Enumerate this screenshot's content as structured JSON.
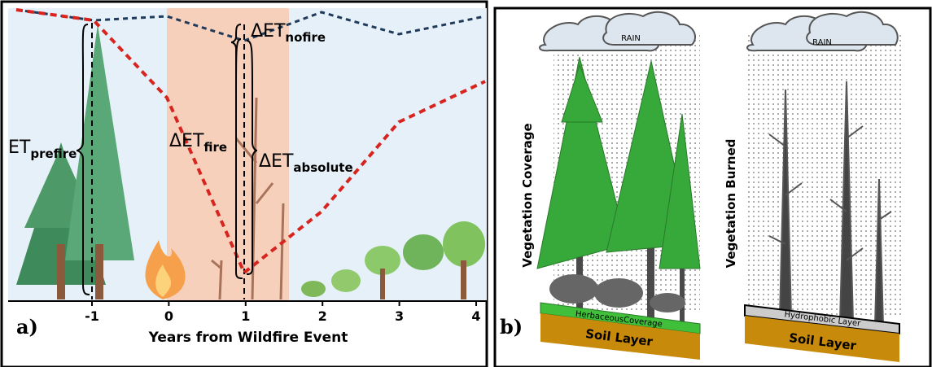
{
  "panel_a": {
    "label": "a)",
    "x_axis_title": "Years from Wildfire Event",
    "x_ticks": [
      "-1",
      "0",
      "1",
      "2",
      "3",
      "4"
    ],
    "annotations": {
      "et_prefire": {
        "main": "ET",
        "sub": "prefire"
      },
      "delta_nofire": {
        "main": "ΔET",
        "sub": "nofire"
      },
      "delta_fire": {
        "main": "ΔET",
        "sub": "fire"
      },
      "delta_absolute": {
        "main": "ΔET",
        "sub": "absolute"
      }
    }
  },
  "panel_b": {
    "label": "b)",
    "left": {
      "side_label": "Vegetation Coverage",
      "cloud_label": "RAIN",
      "strip_label": "HerbaceousCoverage",
      "soil_label": "Soil Layer"
    },
    "right": {
      "side_label": "Vegetation Burned",
      "cloud_label": "RAIN",
      "strip_label": "Hydrophobic Layer",
      "soil_label": "Soil Layer"
    }
  }
}
